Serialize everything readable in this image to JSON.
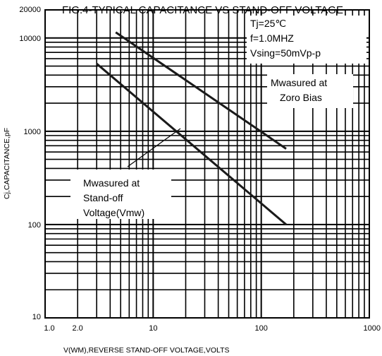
{
  "chart_data": {
    "type": "line",
    "title": "FIG.4-TYPICAL CAPACITANCE VS STAND-OFF VOLTAGE",
    "xlabel": "V(WM),REVERSE STAND-OFF VOLTAGE,VOLTS",
    "ylabel": "Cj,CAPACITANCE,pF",
    "xscale": "log",
    "yscale": "log",
    "xlim": [
      1,
      1000
    ],
    "ylim": [
      10,
      20000
    ],
    "xticks": [
      {
        "value": 1,
        "label": "1.0"
      },
      {
        "value": 2,
        "label": "2.0"
      },
      {
        "value": 10,
        "label": "10"
      },
      {
        "value": 100,
        "label": "100"
      },
      {
        "value": 1000,
        "label": "1000"
      }
    ],
    "yticks": [
      {
        "value": 10,
        "label": "10"
      },
      {
        "value": 100,
        "label": "100"
      },
      {
        "value": 1000,
        "label": "1000"
      },
      {
        "value": 10000,
        "label": "10000"
      },
      {
        "value": 20000,
        "label": "20000"
      }
    ],
    "grid": true,
    "series": [
      {
        "x": [
          4.5,
          170
        ],
        "y": [
          11500,
          650
        ]
      },
      {
        "x": [
          3,
          170
        ],
        "y": [
          5300,
          100
        ]
      }
    ],
    "annotations": {
      "conditions": [
        "Tj=25℃",
        "f=1.0MHZ",
        "Vsing=50mVp-p"
      ],
      "zero_bias": [
        "Mwasured at",
        "Zoro Bias"
      ],
      "standoff": [
        "Mwasured at",
        "Stand-off",
        "Voltage(Vmw)"
      ]
    }
  }
}
